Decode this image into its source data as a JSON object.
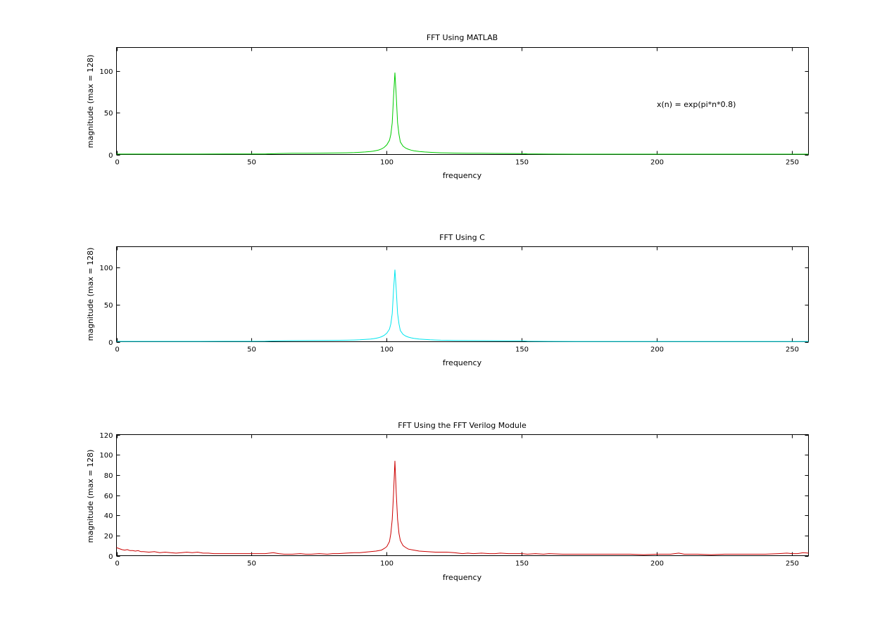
{
  "chart_data": [
    {
      "type": "line",
      "title": "FFT Using MATLAB",
      "xlabel": "frequency",
      "ylabel": "magnitude (max = 128)",
      "xlim": [
        0,
        256
      ],
      "ylim": [
        0,
        128
      ],
      "xticks": [
        0,
        50,
        100,
        150,
        200,
        250
      ],
      "yticks": [
        0,
        50,
        100
      ],
      "grid": false,
      "color": "#00cc00",
      "annotation": {
        "text": "x(n) = exp(pi*n*0.8)",
        "x": 200,
        "y": 60
      },
      "series": [
        {
          "x": [
            0,
            10,
            20,
            30,
            40,
            50,
            55,
            60,
            65,
            70,
            75,
            80,
            85,
            88,
            90,
            92,
            94,
            95,
            96,
            97,
            98,
            99,
            100,
            101,
            101.5,
            102,
            102.5,
            103,
            103.5,
            104,
            104.5,
            105,
            106,
            107,
            108,
            109,
            110,
            112,
            114,
            116,
            118,
            120,
            125,
            130,
            135,
            140,
            145,
            150,
            152,
            155,
            160,
            170,
            180,
            190,
            200,
            210,
            220,
            230,
            240,
            250,
            256
          ],
          "y": [
            0.5,
            0.5,
            0.5,
            0.5,
            0.6,
            0.6,
            0.7,
            1.2,
            1.4,
            1.5,
            1.6,
            1.8,
            2.0,
            2.3,
            2.6,
            3.0,
            3.6,
            4.0,
            4.6,
            5.4,
            6.6,
            8.4,
            11.5,
            17,
            24,
            38,
            70,
            98,
            70,
            38,
            24,
            15,
            10,
            7.6,
            6.2,
            5.2,
            4.5,
            3.6,
            3.0,
            2.6,
            2.3,
            2.0,
            1.7,
            1.5,
            1.4,
            1.3,
            1.2,
            1.1,
            0.8,
            0.6,
            0.5,
            0.4,
            0.4,
            0.4,
            0.4,
            0.4,
            0.4,
            0.4,
            0.4,
            0.4,
            0.4
          ]
        }
      ]
    },
    {
      "type": "line",
      "title": "FFT Using C",
      "xlabel": "frequency",
      "ylabel": "magnitude (max = 128)",
      "xlim": [
        0,
        256
      ],
      "ylim": [
        0,
        128
      ],
      "xticks": [
        0,
        50,
        100,
        150,
        200,
        250
      ],
      "yticks": [
        0,
        50,
        100
      ],
      "grid": false,
      "color": "#00e5ee",
      "series": [
        {
          "x": [
            0,
            10,
            20,
            30,
            40,
            50,
            55,
            60,
            65,
            70,
            75,
            80,
            85,
            88,
            90,
            92,
            94,
            95,
            96,
            97,
            98,
            99,
            100,
            101,
            101.5,
            102,
            102.5,
            103,
            103.5,
            104,
            104.5,
            105,
            106,
            107,
            108,
            109,
            110,
            112,
            114,
            116,
            118,
            120,
            125,
            130,
            135,
            140,
            145,
            150,
            152,
            155,
            160,
            170,
            180,
            190,
            200,
            210,
            220,
            230,
            240,
            250,
            256
          ],
          "y": [
            0.5,
            0.5,
            0.5,
            0.5,
            0.6,
            0.6,
            0.7,
            1.2,
            1.4,
            1.5,
            1.6,
            1.8,
            2.0,
            2.3,
            2.6,
            3.0,
            3.6,
            4.0,
            4.6,
            5.4,
            6.6,
            8.4,
            11.5,
            17,
            24,
            38,
            70,
            97,
            70,
            38,
            24,
            15,
            10,
            7.6,
            6.2,
            5.2,
            4.5,
            3.6,
            3.0,
            2.6,
            2.3,
            2.0,
            1.7,
            1.5,
            1.4,
            1.3,
            1.2,
            1.1,
            0.8,
            0.6,
            0.5,
            0.4,
            0.4,
            0.4,
            0.4,
            0.4,
            0.4,
            0.4,
            0.4,
            0.4,
            0.4
          ]
        }
      ]
    },
    {
      "type": "line",
      "title": "FFT Using the FFT Verilog Module",
      "xlabel": "frequency",
      "ylabel": "magnitude (max = 128)",
      "xlim": [
        0,
        256
      ],
      "ylim": [
        0,
        120
      ],
      "xticks": [
        0,
        50,
        100,
        150,
        200,
        250
      ],
      "yticks": [
        0,
        20,
        40,
        60,
        80,
        100,
        120
      ],
      "grid": false,
      "color": "#cc0000",
      "series": [
        {
          "x": [
            0,
            1,
            2,
            3,
            4,
            5,
            6,
            7,
            8,
            9,
            10,
            12,
            14,
            16,
            18,
            20,
            22,
            24,
            26,
            28,
            30,
            32,
            34,
            36,
            38,
            40,
            45,
            50,
            55,
            58,
            60,
            62,
            65,
            68,
            70,
            72,
            75,
            78,
            80,
            82,
            85,
            88,
            90,
            92,
            94,
            96,
            98,
            99,
            100,
            101,
            101.5,
            102,
            102.5,
            103,
            103.5,
            104,
            104.5,
            105,
            106,
            107,
            108,
            110,
            112,
            115,
            118,
            120,
            122,
            125,
            128,
            130,
            132,
            135,
            138,
            140,
            142,
            145,
            148,
            150,
            152,
            155,
            158,
            160,
            165,
            170,
            175,
            180,
            185,
            190,
            195,
            200,
            205,
            208,
            210,
            215,
            220,
            225,
            230,
            235,
            240,
            245,
            248,
            250,
            252,
            254,
            256
          ],
          "y": [
            8,
            7,
            6,
            5.5,
            6,
            5,
            5,
            4.5,
            5,
            4,
            4,
            3.5,
            4,
            3,
            3.5,
            3,
            2.5,
            3,
            3.5,
            3,
            3.5,
            2.5,
            2.5,
            2,
            2,
            2,
            2,
            2,
            2,
            3,
            2,
            1.5,
            1.5,
            2,
            1.5,
            1.5,
            2,
            1.5,
            2,
            2,
            2.5,
            3,
            3,
            3.5,
            4,
            4.5,
            5.5,
            7,
            9,
            14,
            22,
            36,
            62,
            94,
            62,
            36,
            22,
            15,
            10,
            8,
            6.5,
            5.5,
            4.5,
            4,
            3.5,
            3.5,
            3.5,
            3,
            2,
            2.5,
            2,
            2.5,
            2,
            2,
            2.5,
            2,
            2,
            2,
            1.5,
            2,
            1.5,
            2,
            1.5,
            1.5,
            1.5,
            1.5,
            1.5,
            1.5,
            1,
            1.5,
            1.5,
            2.5,
            1.5,
            1.5,
            1,
            1.5,
            1.5,
            1.5,
            1.5,
            2,
            2.5,
            2,
            2,
            3,
            2.5
          ]
        }
      ]
    }
  ]
}
